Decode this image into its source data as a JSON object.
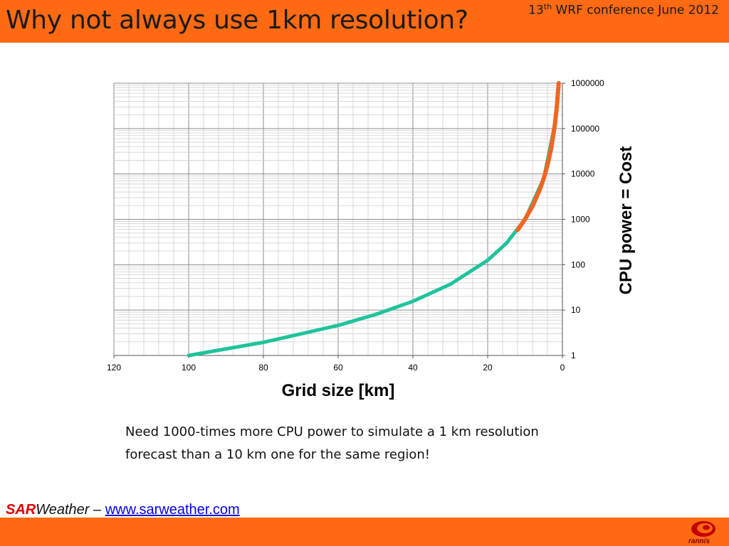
{
  "slide": {
    "title": "Why not always use 1km resolution?",
    "conference_num": "13",
    "conference_sup": "th",
    "conference_rest": " WRF conference June 2012",
    "caption": "Need 1000-times more CPU power to simulate a 1 km resolution forecast than a 10 km one for the same region!",
    "footer": {
      "brand_red": "SAR",
      "brand_rest": "Weather",
      "separator": " – ",
      "link_text": "www.sarweather.com"
    },
    "logo_text": "rannís"
  },
  "colors": {
    "accent_orange": "#ff6a13",
    "curve_teal": "#1fc39b",
    "curve_orange": "#f26522",
    "brand_red": "#e00000",
    "link_blue": "#0000ee"
  },
  "chart_data": {
    "type": "line",
    "xlabel": "Grid size [km]",
    "ylabel": "CPU power = Cost",
    "xlim": [
      120,
      0
    ],
    "x_reversed": true,
    "ylim": [
      1,
      1000000
    ],
    "y_scale": "log",
    "x_ticks": [
      120,
      100,
      80,
      60,
      40,
      20,
      0
    ],
    "y_ticks": [
      1,
      10,
      100,
      1000,
      10000,
      100000,
      1000000
    ],
    "y_tick_labels": [
      "1",
      "10",
      "100",
      "1000",
      "10000",
      "100000",
      "1000000"
    ],
    "grid": true,
    "y_axis_position": "right",
    "legend": "none",
    "series": [
      {
        "color": "#1fc39b",
        "x": [
          100,
          80,
          60,
          50,
          40,
          30,
          20,
          15,
          10,
          5,
          2,
          1
        ],
        "y": [
          1,
          1.95,
          4.6,
          8,
          15.6,
          37,
          125,
          296,
          1000,
          8000,
          125000,
          1000000
        ]
      },
      {
        "color": "#f26522",
        "x": [
          12,
          10,
          8,
          6,
          5,
          4,
          3,
          2,
          1.5,
          1
        ],
        "y": [
          579,
          1000,
          1950,
          4630,
          8000,
          15600,
          37000,
          125000,
          296000,
          1000000
        ]
      }
    ]
  }
}
